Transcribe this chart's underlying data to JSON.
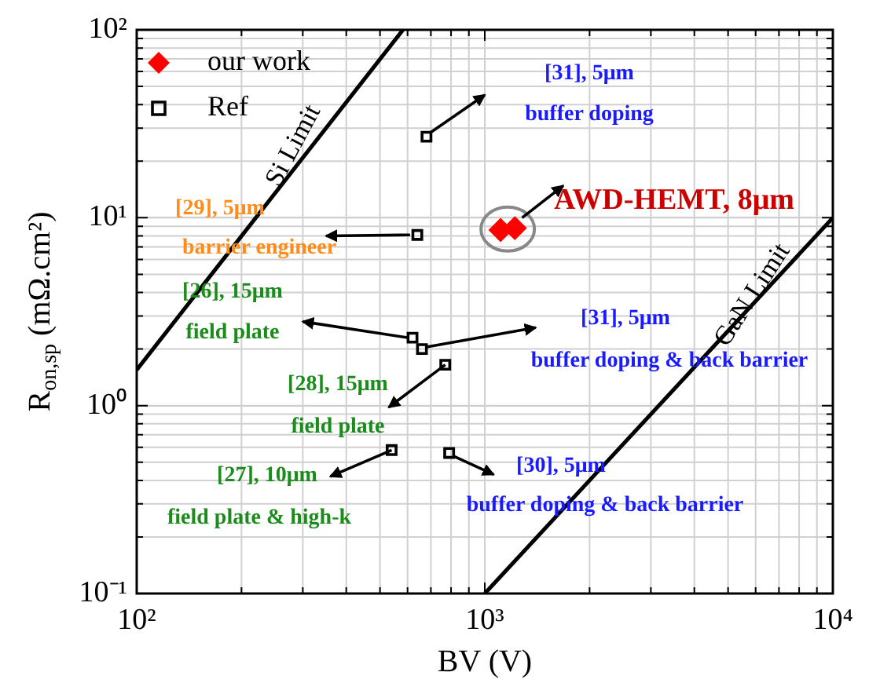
{
  "chart_data": {
    "type": "scatter",
    "xlabel": "BV (V)",
    "ylabel": "R$_{on,sp}$ (mΩ.cm²)",
    "log": "xy",
    "grid": true,
    "legend": "top left",
    "xlim": [
      100,
      10000
    ],
    "xticks": [
      {
        "value": 100,
        "label": "10²"
      },
      {
        "value": 1000,
        "label": "10³"
      },
      {
        "value": 10000,
        "label": "10⁴"
      }
    ],
    "ylim": [
      0.1,
      100
    ],
    "yticks": [
      {
        "value": 0.1,
        "label": "10⁻¹"
      },
      {
        "value": 1,
        "label": "10⁰"
      },
      {
        "value": 10,
        "label": "10¹"
      },
      {
        "value": 100,
        "label": "10²"
      }
    ],
    "series": [
      {
        "name": "our work",
        "color": "#ff0000",
        "marker": "diamond",
        "x": [
          1110,
          1220
        ],
        "values": [
          8.6,
          8.8
        ]
      },
      {
        "name": "Ref",
        "color": "#000000",
        "marker": "square",
        "x": [
          680,
          640,
          620,
          660,
          770,
          540,
          790
        ],
        "values": [
          27,
          8.1,
          2.3,
          2.0,
          1.65,
          0.58,
          0.56
        ]
      },
      {
        "type": "line",
        "color": "#000000",
        "marker": "none",
        "x": [
          100,
          582
        ],
        "values": [
          1.55,
          100
        ]
      },
      {
        "type": "line",
        "color": "#000000",
        "marker": "none",
        "x": [
          1000,
          10000
        ],
        "values": [
          0.1,
          10
        ]
      }
    ],
    "annotations": [
      "[31], 5μm",
      "buffer doping",
      "AWD-HEMT, 8μm",
      "[29], 5μm",
      "barrier engineer",
      "[26], 15μm",
      "field plate",
      "[31], 5μm",
      "buffer doping & back barrier",
      "[28], 15μm",
      "field plate",
      "[27], 10μm",
      "field plate & high-k",
      "[30], 5μm",
      "buffer doping & back barrier",
      "Si Limit",
      "GaN Limit"
    ]
  }
}
